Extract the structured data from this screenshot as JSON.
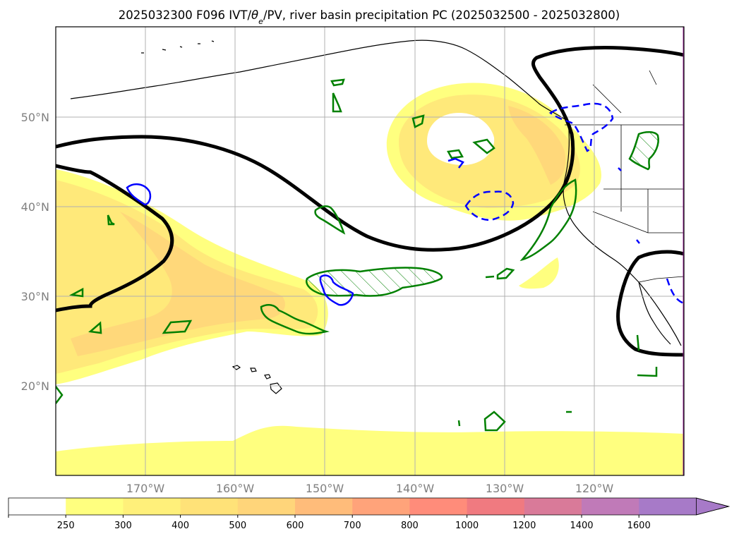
{
  "title_prefix": "2025032300 F096 IVT/",
  "title_theta": "θ",
  "title_theta_sub": "e",
  "title_suffix": "/PV, river basin precipitation PC (2025032500 - 2025032800)",
  "lat_labels": [
    "50°N",
    "40°N",
    "30°N",
    "20°N"
  ],
  "lon_labels": [
    "170°W",
    "160°W",
    "150°W",
    "140°W",
    "130°W",
    "120°W"
  ],
  "colorbar": {
    "ticks": [
      "250",
      "300",
      "400",
      "500",
      "600",
      "700",
      "800",
      "1000",
      "1200",
      "1400",
      "1600"
    ],
    "colors": [
      "#ffffff",
      "#ffff7f",
      "#fff07a",
      "#ffe278",
      "#ffd57a",
      "#ffbc7a",
      "#ffa37a",
      "#ff8c7a",
      "#f07a80",
      "#d97a99",
      "#c07ab8",
      "#a77ac8"
    ],
    "extend": "max"
  },
  "map": {
    "lat_range": [
      10,
      60
    ],
    "lon_range": [
      -180,
      -110
    ],
    "grid": true,
    "ivt_fill_colors": [
      "#ffff7f",
      "#ffe97a",
      "#ffd87a"
    ],
    "theta_e_contour_color": "#000000",
    "pv_positive_color": "#008000",
    "pv_negative_color": "#0000ff"
  }
}
